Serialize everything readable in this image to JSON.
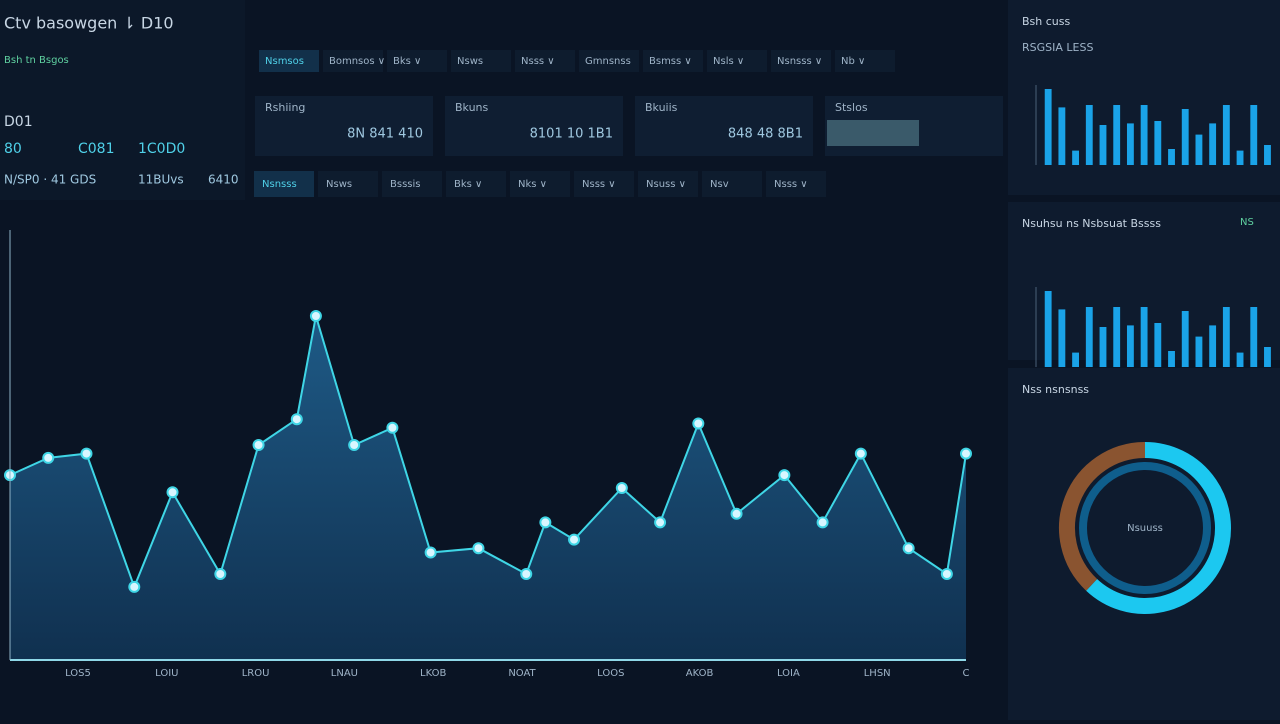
{
  "header": {
    "title": "Ctv basowgen ⇂ D10",
    "subtitle": "Bsh tn Bsgos"
  },
  "stats": {
    "label": "D01",
    "row1": [
      "80",
      "C081",
      "1C0D0"
    ],
    "row2": [
      "N/SP0 · 41 GDS",
      "11BUvs",
      "6410"
    ]
  },
  "nav_tabs": [
    "Nsmsos",
    "Bomnsos ∨",
    "Bks ∨",
    "Nsws",
    "Nsss ∨",
    "Gmnsnss",
    "Bsmss ∨",
    "Nsls ∨",
    "Nsnsss ∨",
    "Nb ∨"
  ],
  "cards": [
    {
      "label": "Rshiing",
      "value": "8N 841 410"
    },
    {
      "label": "Bkuns",
      "value": "8101 10 1B1"
    },
    {
      "label": "Bkuiis",
      "value": "848 48 8B1"
    },
    {
      "label": "Stslos"
    }
  ],
  "filter_tabs": [
    "Nsnsss",
    "Nsws",
    "Bsssis",
    "Bks ∨",
    "Nks ∨",
    "Nsss ∨",
    "Nsuss ∨",
    "Nsv",
    "Nsss ∨"
  ],
  "main_chart": {
    "type": "line",
    "categories": [
      "LOS5",
      "LOIU",
      "LROU",
      "LNAU",
      "LKOB",
      "NOAT",
      "LOOS",
      "AKOB",
      "LOIA",
      "LHSN",
      "C"
    ],
    "x": [
      0,
      4,
      8,
      13,
      17,
      22,
      26,
      30,
      32,
      36,
      40,
      44,
      49,
      54,
      56,
      59,
      64,
      68,
      72,
      76,
      81,
      85,
      89,
      94,
      98,
      100
    ],
    "values": [
      43,
      47,
      48,
      17,
      39,
      20,
      50,
      56,
      80,
      50,
      54,
      25,
      26,
      20,
      32,
      28,
      40,
      32,
      55,
      34,
      43,
      32,
      48,
      26,
      20,
      48
    ],
    "xlim": [
      0,
      100
    ],
    "ylim": [
      0,
      100
    ],
    "color": "#3fd6e6"
  },
  "side_panels": [
    {
      "title": "Bsh cuss",
      "subtitle": "RSGSIA LESS",
      "chart": {
        "type": "bar",
        "values": [
          95,
          72,
          18,
          75,
          50,
          75,
          52,
          75,
          55,
          20,
          70,
          38,
          52,
          75,
          18,
          75,
          25
        ],
        "ylim": [
          0,
          100
        ],
        "color": "#1aa3e8"
      }
    },
    {
      "title": "Nsuhsu ns Nsbsuat Bssss",
      "badge": "NS",
      "chart": {
        "type": "bar",
        "values": [
          95,
          72,
          18,
          75,
          50,
          75,
          52,
          75,
          55,
          20,
          70,
          38,
          52,
          75,
          18,
          75,
          25
        ],
        "ylim": [
          0,
          100
        ],
        "color": "#1aa3e8"
      }
    },
    {
      "title": "Nss nsnsnss",
      "chart": {
        "type": "pie",
        "center_label": "Nsuuss",
        "values": [
          62,
          38
        ],
        "colors": [
          "#1cc8f0",
          "#8a5430"
        ]
      }
    }
  ]
}
